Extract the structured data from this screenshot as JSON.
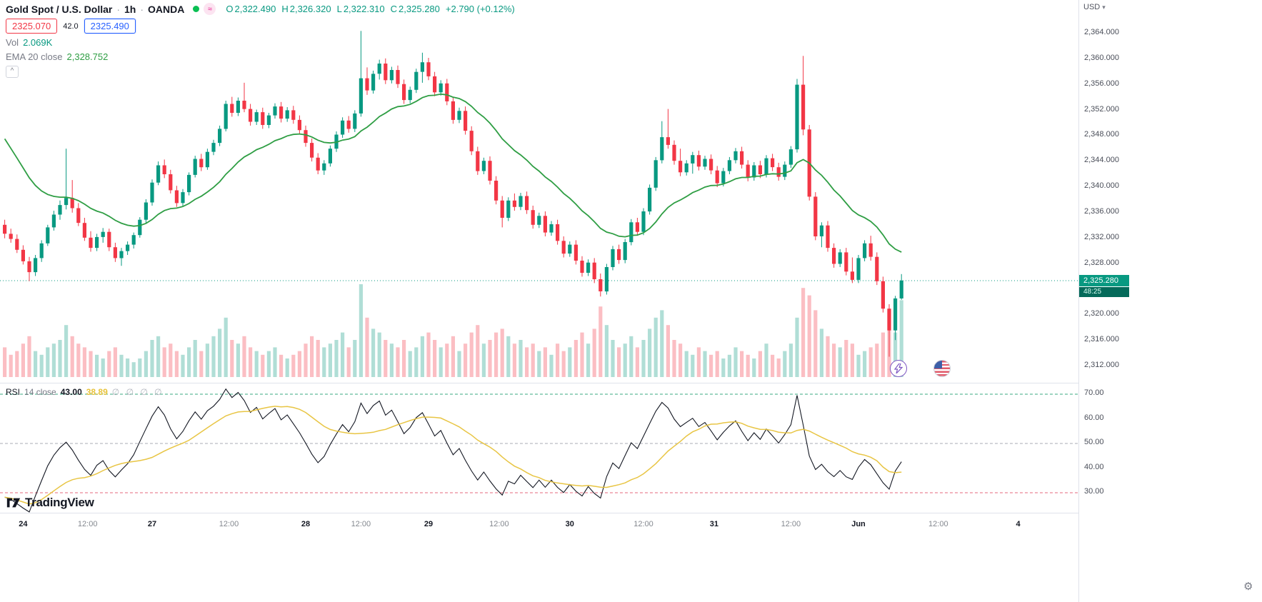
{
  "header": {
    "symbol": "Gold Spot / U.S. Dollar",
    "sep": "·",
    "interval": "1h",
    "exchange": "OANDA",
    "ohlc": {
      "o_label": "O",
      "o": "2,322.490",
      "h_label": "H",
      "h": "2,326.320",
      "l_label": "L",
      "l": "2,322.310",
      "c_label": "C",
      "c": "2,325.280",
      "change": "+2.790 (+0.12%)"
    },
    "sell_price": "2325.070",
    "spread": "42.0",
    "buy_price": "2325.490",
    "vol_label": "Vol",
    "vol_value": "2.069K",
    "ema_label": "EMA 20 close",
    "ema_value": "2,328.752"
  },
  "icons": {
    "wave": "≈",
    "collapse": "^",
    "caret_down": "▾",
    "gear": "⚙"
  },
  "price_axis": {
    "currency": "USD",
    "labels": [
      "2,364.000",
      "2,360.000",
      "2,356.000",
      "2,352.000",
      "2,348.000",
      "2,344.000",
      "2,340.000",
      "2,336.000",
      "2,332.000",
      "2,328.000",
      "2,320.000",
      "2,316.000",
      "2,312.000"
    ],
    "current_price": "2,325.280",
    "countdown": "48:25"
  },
  "rsi": {
    "title": "RSI",
    "params": "14 close",
    "value": "43.00",
    "ma_value": "38.89",
    "hidden_values": "∅ ∅ ∅ ∅",
    "levels": [
      "70.00",
      "60.00",
      "50.00",
      "40.00",
      "30.00"
    ]
  },
  "watermark": {
    "text": "TradingView"
  },
  "colors": {
    "up": "#089981",
    "down": "#f23645",
    "ema": "#2f9e44",
    "rsi_line": "#131722",
    "rsi_ma": "#e7c23a",
    "lvl70": "#3aa981",
    "lvl50": "#a8abb5",
    "lvl30": "#e5697c",
    "accent_teal": "#089981",
    "sell_red": "#f23645",
    "buy_blue": "#2962ff",
    "status_green": "#0abf53",
    "badge_bg": "#089981",
    "countdown_bg": "#056a5a"
  },
  "chart_data": {
    "type": "candlestick",
    "title": "Gold Spot / U.S. Dollar · 1h · OANDA",
    "interval": "1h",
    "price_ylim": [
      2312,
      2364
    ],
    "current_price_value": 2325.28,
    "volume_unit": "K",
    "ema": {
      "period": 20,
      "seed": 2349,
      "last": 2328.752
    },
    "rsi": {
      "period": 14,
      "seed_gain": 0.55,
      "seed_loss": 1.4,
      "ma_period": 14,
      "levels": [
        70,
        50,
        30
      ],
      "last": 43.0,
      "ma_last": 38.89
    },
    "time_labels": [
      {
        "t": "24",
        "i": 3,
        "major": true
      },
      {
        "t": "12:00",
        "i": 13.5
      },
      {
        "t": "27",
        "i": 24,
        "major": true
      },
      {
        "t": "12:00",
        "i": 36.5
      },
      {
        "t": "28",
        "i": 49,
        "major": true
      },
      {
        "t": "12:00",
        "i": 58
      },
      {
        "t": "29",
        "i": 69,
        "major": true
      },
      {
        "t": "12:00",
        "i": 80.5
      },
      {
        "t": "30",
        "i": 92,
        "major": true
      },
      {
        "t": "12:00",
        "i": 104
      },
      {
        "t": "31",
        "i": 115.5,
        "major": true
      },
      {
        "t": "12:00",
        "i": 128
      },
      {
        "t": "Jun",
        "i": 139,
        "major": true
      },
      {
        "t": "12:00",
        "i": 152
      },
      {
        "t": "4",
        "i": 165,
        "major": true
      }
    ],
    "candles": [
      [
        2334.0,
        2334.8,
        2331.9,
        2332.6
      ],
      [
        2332.6,
        2333.4,
        2331.2,
        2331.8
      ],
      [
        2331.8,
        2332.5,
        2329.6,
        2330.1
      ],
      [
        2330.1,
        2330.8,
        2327.8,
        2328.3
      ],
      [
        2328.3,
        2329.0,
        2325.2,
        2326.6
      ],
      [
        2326.6,
        2329.3,
        2326.0,
        2328.8
      ],
      [
        2328.8,
        2331.6,
        2328.2,
        2331.1
      ],
      [
        2331.1,
        2334.0,
        2330.7,
        2333.6
      ],
      [
        2333.6,
        2336.2,
        2333.1,
        2335.6
      ],
      [
        2335.6,
        2337.8,
        2334.8,
        2337.1
      ],
      [
        2337.1,
        2345.9,
        2336.4,
        2338.2
      ],
      [
        2338.2,
        2341.0,
        2335.9,
        2336.6
      ],
      [
        2336.6,
        2337.4,
        2333.8,
        2334.3
      ],
      [
        2334.3,
        2335.1,
        2331.5,
        2332.0
      ],
      [
        2332.0,
        2333.0,
        2329.8,
        2330.4
      ],
      [
        2330.4,
        2332.6,
        2329.9,
        2332.1
      ],
      [
        2332.1,
        2333.5,
        2331.2,
        2332.9
      ],
      [
        2332.9,
        2333.4,
        2329.9,
        2330.5
      ],
      [
        2330.5,
        2331.2,
        2328.2,
        2328.8
      ],
      [
        2328.8,
        2330.4,
        2327.6,
        2329.9
      ],
      [
        2329.9,
        2331.4,
        2329.3,
        2330.9
      ],
      [
        2330.9,
        2332.8,
        2330.3,
        2332.4
      ],
      [
        2332.4,
        2335.2,
        2332.0,
        2334.8
      ],
      [
        2334.8,
        2338.0,
        2334.3,
        2337.5
      ],
      [
        2337.5,
        2341.1,
        2337.0,
        2340.6
      ],
      [
        2340.6,
        2343.9,
        2340.2,
        2343.3
      ],
      [
        2343.3,
        2344.2,
        2341.3,
        2341.9
      ],
      [
        2341.9,
        2342.6,
        2338.9,
        2339.4
      ],
      [
        2339.4,
        2340.1,
        2336.8,
        2337.4
      ],
      [
        2337.4,
        2339.6,
        2336.9,
        2339.1
      ],
      [
        2339.1,
        2342.2,
        2338.6,
        2341.8
      ],
      [
        2341.8,
        2344.8,
        2341.4,
        2344.3
      ],
      [
        2344.3,
        2345.1,
        2342.4,
        2343.0
      ],
      [
        2343.0,
        2345.9,
        2342.6,
        2345.4
      ],
      [
        2345.4,
        2347.3,
        2344.9,
        2346.8
      ],
      [
        2346.8,
        2349.5,
        2346.3,
        2349.0
      ],
      [
        2349.0,
        2353.4,
        2348.6,
        2352.9
      ],
      [
        2352.9,
        2354.0,
        2350.9,
        2351.5
      ],
      [
        2351.5,
        2353.9,
        2351.0,
        2353.4
      ],
      [
        2353.4,
        2356.2,
        2351.6,
        2352.1
      ],
      [
        2352.1,
        2352.9,
        2349.5,
        2350.1
      ],
      [
        2350.1,
        2352.0,
        2349.6,
        2351.6
      ],
      [
        2351.6,
        2352.3,
        2349.0,
        2349.6
      ],
      [
        2349.6,
        2351.5,
        2349.1,
        2351.1
      ],
      [
        2351.1,
        2353.0,
        2350.6,
        2352.5
      ],
      [
        2352.5,
        2353.2,
        2350.0,
        2350.6
      ],
      [
        2350.6,
        2352.4,
        2350.1,
        2351.9
      ],
      [
        2351.9,
        2352.6,
        2349.8,
        2350.4
      ],
      [
        2350.4,
        2351.1,
        2348.2,
        2348.8
      ],
      [
        2348.8,
        2349.5,
        2346.2,
        2346.8
      ],
      [
        2346.8,
        2347.5,
        2343.9,
        2344.5
      ],
      [
        2344.5,
        2345.2,
        2341.9,
        2342.5
      ],
      [
        2342.5,
        2344.1,
        2341.8,
        2343.6
      ],
      [
        2343.6,
        2346.4,
        2343.1,
        2345.9
      ],
      [
        2345.9,
        2348.6,
        2345.4,
        2348.1
      ],
      [
        2348.1,
        2350.8,
        2347.6,
        2350.3
      ],
      [
        2350.3,
        2351.0,
        2348.4,
        2349.0
      ],
      [
        2349.0,
        2351.9,
        2348.5,
        2351.4
      ],
      [
        2351.4,
        2364.3,
        2350.9,
        2356.9
      ],
      [
        2356.9,
        2358.6,
        2354.3,
        2355.0
      ],
      [
        2355.0,
        2358.1,
        2354.5,
        2357.6
      ],
      [
        2357.6,
        2359.8,
        2356.7,
        2359.2
      ],
      [
        2359.2,
        2360.0,
        2356.0,
        2356.6
      ],
      [
        2356.6,
        2358.7,
        2356.1,
        2358.2
      ],
      [
        2358.2,
        2358.9,
        2355.4,
        2356.0
      ],
      [
        2356.0,
        2356.7,
        2352.9,
        2353.5
      ],
      [
        2353.5,
        2355.6,
        2353.0,
        2355.1
      ],
      [
        2355.1,
        2358.4,
        2354.6,
        2357.9
      ],
      [
        2357.9,
        2360.9,
        2356.2,
        2359.4
      ],
      [
        2359.4,
        2360.1,
        2356.6,
        2357.2
      ],
      [
        2357.2,
        2357.9,
        2354.1,
        2354.7
      ],
      [
        2354.7,
        2356.6,
        2354.2,
        2356.1
      ],
      [
        2356.1,
        2356.8,
        2352.7,
        2353.3
      ],
      [
        2353.3,
        2354.0,
        2349.8,
        2350.4
      ],
      [
        2350.4,
        2352.3,
        2349.9,
        2351.8
      ],
      [
        2351.8,
        2352.5,
        2348.1,
        2348.7
      ],
      [
        2348.7,
        2349.4,
        2344.9,
        2345.5
      ],
      [
        2345.5,
        2346.2,
        2341.8,
        2342.4
      ],
      [
        2342.4,
        2344.5,
        2341.9,
        2344.0
      ],
      [
        2344.0,
        2344.7,
        2340.3,
        2340.9
      ],
      [
        2340.9,
        2341.6,
        2337.2,
        2337.8
      ],
      [
        2337.8,
        2338.5,
        2333.6,
        2335.1
      ],
      [
        2335.1,
        2338.3,
        2334.6,
        2337.8
      ],
      [
        2337.8,
        2338.9,
        2336.2,
        2336.8
      ],
      [
        2336.8,
        2339.0,
        2336.3,
        2338.5
      ],
      [
        2338.5,
        2339.2,
        2335.7,
        2336.3
      ],
      [
        2336.3,
        2337.0,
        2333.4,
        2334.0
      ],
      [
        2334.0,
        2335.9,
        2333.5,
        2335.4
      ],
      [
        2335.4,
        2336.1,
        2332.2,
        2332.8
      ],
      [
        2332.8,
        2334.6,
        2332.3,
        2334.1
      ],
      [
        2334.1,
        2334.8,
        2330.9,
        2331.5
      ],
      [
        2331.5,
        2332.2,
        2328.9,
        2329.5
      ],
      [
        2329.5,
        2331.4,
        2329.0,
        2330.9
      ],
      [
        2330.9,
        2331.6,
        2327.8,
        2328.4
      ],
      [
        2328.4,
        2329.1,
        2325.9,
        2326.5
      ],
      [
        2326.5,
        2328.6,
        2326.0,
        2328.1
      ],
      [
        2328.1,
        2328.8,
        2324.9,
        2325.5
      ],
      [
        2325.5,
        2326.4,
        2322.8,
        2323.6
      ],
      [
        2323.6,
        2327.9,
        2323.1,
        2327.4
      ],
      [
        2327.4,
        2330.7,
        2326.9,
        2330.2
      ],
      [
        2330.2,
        2330.9,
        2327.9,
        2328.5
      ],
      [
        2328.5,
        2331.8,
        2328.0,
        2331.3
      ],
      [
        2331.3,
        2334.9,
        2330.8,
        2334.4
      ],
      [
        2334.4,
        2335.1,
        2332.3,
        2332.9
      ],
      [
        2332.9,
        2336.6,
        2332.4,
        2336.1
      ],
      [
        2336.1,
        2340.3,
        2335.6,
        2339.8
      ],
      [
        2339.8,
        2344.6,
        2339.3,
        2344.1
      ],
      [
        2344.1,
        2350.2,
        2343.6,
        2347.7
      ],
      [
        2347.7,
        2352.1,
        2345.9,
        2346.5
      ],
      [
        2346.5,
        2347.2,
        2343.4,
        2344.0
      ],
      [
        2344.0,
        2345.9,
        2341.6,
        2342.2
      ],
      [
        2342.2,
        2344.1,
        2341.7,
        2343.6
      ],
      [
        2343.6,
        2345.4,
        2342.0,
        2344.9
      ],
      [
        2344.9,
        2345.6,
        2342.5,
        2343.1
      ],
      [
        2343.1,
        2344.8,
        2342.6,
        2344.3
      ],
      [
        2344.3,
        2345.0,
        2341.9,
        2342.5
      ],
      [
        2342.5,
        2343.2,
        2339.9,
        2340.5
      ],
      [
        2340.5,
        2342.9,
        2340.0,
        2342.4
      ],
      [
        2342.4,
        2344.6,
        2341.9,
        2344.1
      ],
      [
        2344.1,
        2346.0,
        2343.6,
        2345.5
      ],
      [
        2345.5,
        2346.2,
        2342.8,
        2343.4
      ],
      [
        2343.4,
        2344.1,
        2340.8,
        2341.4
      ],
      [
        2341.4,
        2343.8,
        2340.9,
        2343.3
      ],
      [
        2343.3,
        2344.0,
        2341.3,
        2341.9
      ],
      [
        2341.9,
        2344.9,
        2341.4,
        2344.4
      ],
      [
        2344.4,
        2345.1,
        2342.4,
        2343.0
      ],
      [
        2343.0,
        2343.7,
        2340.9,
        2341.5
      ],
      [
        2341.5,
        2343.9,
        2341.0,
        2343.4
      ],
      [
        2343.4,
        2346.3,
        2342.9,
        2345.8
      ],
      [
        2345.8,
        2356.8,
        2345.3,
        2355.9
      ],
      [
        2355.9,
        2360.4,
        2348.0,
        2348.9
      ],
      [
        2348.9,
        2349.6,
        2337.8,
        2338.4
      ],
      [
        2338.4,
        2339.1,
        2331.6,
        2332.2
      ],
      [
        2332.2,
        2334.4,
        2330.5,
        2333.9
      ],
      [
        2333.9,
        2334.6,
        2329.8,
        2330.4
      ],
      [
        2330.4,
        2331.1,
        2327.3,
        2327.9
      ],
      [
        2327.9,
        2330.2,
        2327.4,
        2329.7
      ],
      [
        2329.7,
        2330.4,
        2326.1,
        2326.7
      ],
      [
        2326.7,
        2328.9,
        2324.9,
        2325.4
      ],
      [
        2325.4,
        2329.3,
        2324.9,
        2328.8
      ],
      [
        2328.8,
        2331.6,
        2328.3,
        2331.1
      ],
      [
        2331.1,
        2332.3,
        2328.4,
        2329.0
      ],
      [
        2329.0,
        2329.7,
        2324.6,
        2325.2
      ],
      [
        2325.2,
        2325.9,
        2320.3,
        2320.9
      ],
      [
        2320.9,
        2321.6,
        2313.4,
        2317.5
      ],
      [
        2317.5,
        2322.9,
        2316.0,
        2322.5
      ],
      [
        2322.5,
        2326.3,
        2322.3,
        2325.3
      ]
    ],
    "volumes_k": [
      0.8,
      0.6,
      0.7,
      0.9,
      1.1,
      0.7,
      0.6,
      0.8,
      0.9,
      1.0,
      1.4,
      1.1,
      0.9,
      0.8,
      0.7,
      0.6,
      0.5,
      0.7,
      0.8,
      0.6,
      0.5,
      0.4,
      0.5,
      0.7,
      1.0,
      1.1,
      0.8,
      0.9,
      0.7,
      0.6,
      0.8,
      1.0,
      0.7,
      0.9,
      1.1,
      1.3,
      1.6,
      1.0,
      0.9,
      1.1,
      0.8,
      0.7,
      0.6,
      0.7,
      0.8,
      0.6,
      0.5,
      0.6,
      0.7,
      0.9,
      1.1,
      1.0,
      0.8,
      0.9,
      1.0,
      1.2,
      0.8,
      1.0,
      2.5,
      1.6,
      1.3,
      1.2,
      1.0,
      0.9,
      0.8,
      1.0,
      0.7,
      0.8,
      1.1,
      1.2,
      1.0,
      0.8,
      0.9,
      1.1,
      0.7,
      0.9,
      1.2,
      1.4,
      0.9,
      1.0,
      1.2,
      1.3,
      1.1,
      0.9,
      1.0,
      0.8,
      0.9,
      0.7,
      0.8,
      0.6,
      0.9,
      0.7,
      0.8,
      1.0,
      1.2,
      0.9,
      1.3,
      1.9,
      1.4,
      1.0,
      0.8,
      0.9,
      1.1,
      0.8,
      1.0,
      1.3,
      1.6,
      1.8,
      1.4,
      1.0,
      0.9,
      0.7,
      0.6,
      0.8,
      0.7,
      0.6,
      0.7,
      0.5,
      0.6,
      0.8,
      0.7,
      0.6,
      0.5,
      0.7,
      0.9,
      0.6,
      0.5,
      0.7,
      0.9,
      1.6,
      2.4,
      2.2,
      1.8,
      1.3,
      1.1,
      0.9,
      0.8,
      1.0,
      0.9,
      0.6,
      0.7,
      0.8,
      0.9,
      1.2,
      1.8,
      1.2,
      2.069
    ]
  }
}
